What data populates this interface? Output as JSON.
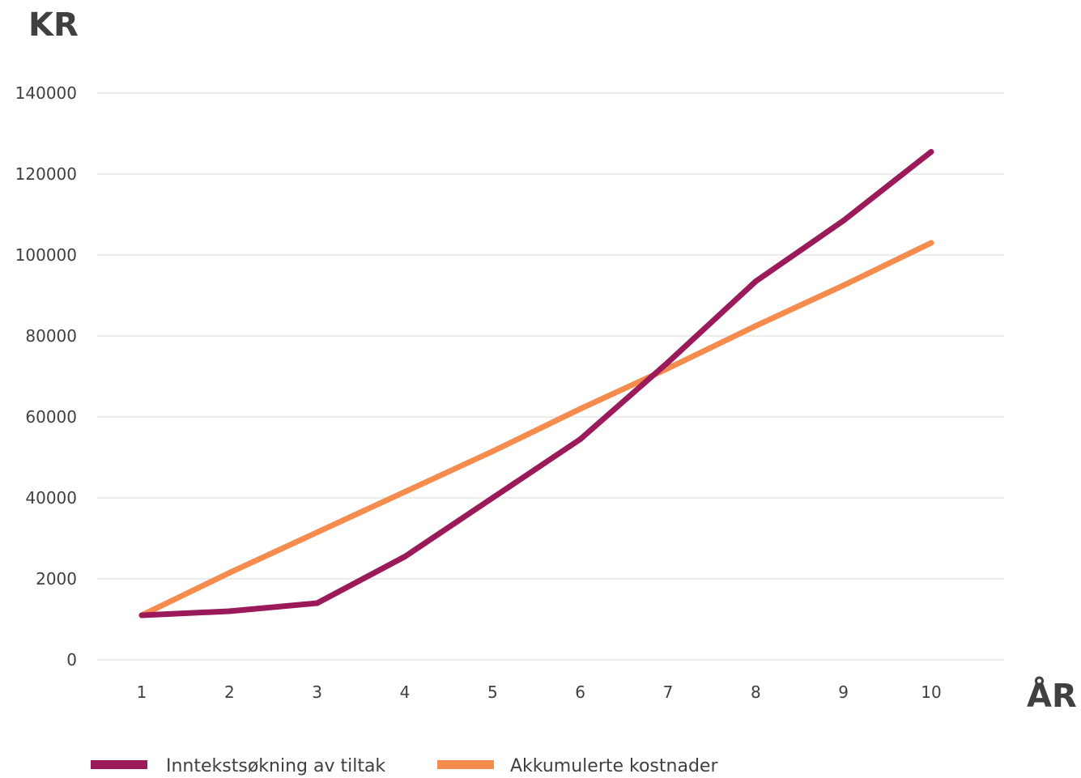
{
  "chart_data": {
    "type": "line",
    "title": "",
    "ylabel": "KR",
    "xlabel": "ÅR",
    "categories": [
      "1",
      "2",
      "3",
      "4",
      "5",
      "6",
      "7",
      "8",
      "9",
      "10"
    ],
    "yticks": [
      "0",
      "2000",
      "40000",
      "60000",
      "80000",
      "100000",
      "120000",
      "140000"
    ],
    "ylim": [
      0,
      140000
    ],
    "grid": true,
    "legend_position": "bottom",
    "series": [
      {
        "name": "Inntekstsøkning av tiltak",
        "color": "#9B1B5A",
        "values": [
          11000,
          12000,
          14000,
          25500,
          40000,
          54500,
          73500,
          93500,
          108500,
          125500
        ]
      },
      {
        "name": "Akkumulerte kostnader",
        "color": "#F58B4C",
        "values": [
          11000,
          21500,
          31500,
          41500,
          51500,
          62000,
          72000,
          82500,
          92500,
          103000
        ]
      }
    ]
  }
}
